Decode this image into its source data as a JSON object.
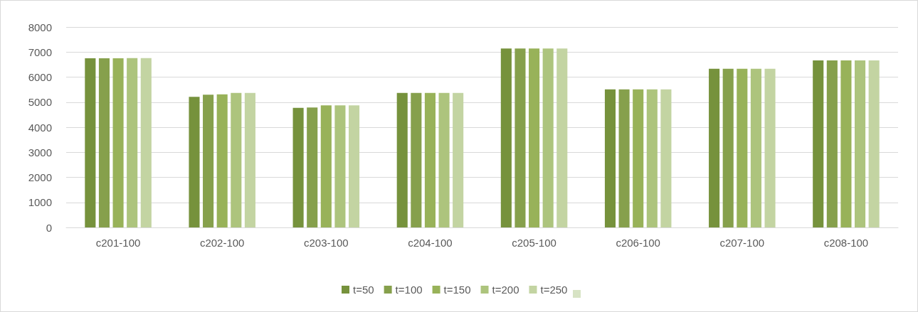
{
  "chart_data": {
    "type": "bar",
    "categories": [
      "c201-100",
      "c202-100",
      "c203-100",
      "c204-100",
      "c205-100",
      "c206-100",
      "c207-100",
      "c208-100"
    ],
    "series": [
      {
        "name": "t=50",
        "color": "#76923c",
        "values": [
          6750,
          5210,
          4770,
          5370,
          7140,
          5510,
          6330,
          6670
        ]
      },
      {
        "name": "t=100",
        "color": "#86a04c",
        "values": [
          6750,
          5300,
          4790,
          5370,
          7140,
          5510,
          6330,
          6670
        ]
      },
      {
        "name": "t=150",
        "color": "#98b259",
        "values": [
          6750,
          5310,
          4870,
          5370,
          7140,
          5510,
          6330,
          6670
        ]
      },
      {
        "name": "t=200",
        "color": "#adc47d",
        "values": [
          6760,
          5370,
          4870,
          5370,
          7140,
          5510,
          6330,
          6670
        ]
      },
      {
        "name": "t=250",
        "color": "#c3d4a2",
        "values": [
          6760,
          5370,
          4870,
          5370,
          7140,
          5510,
          6330,
          6670
        ]
      }
    ],
    "ylim": [
      0,
      8000
    ],
    "yticks": [
      0,
      1000,
      2000,
      3000,
      4000,
      5000,
      6000,
      7000,
      8000
    ],
    "grid": "y",
    "legend": "bottom"
  }
}
